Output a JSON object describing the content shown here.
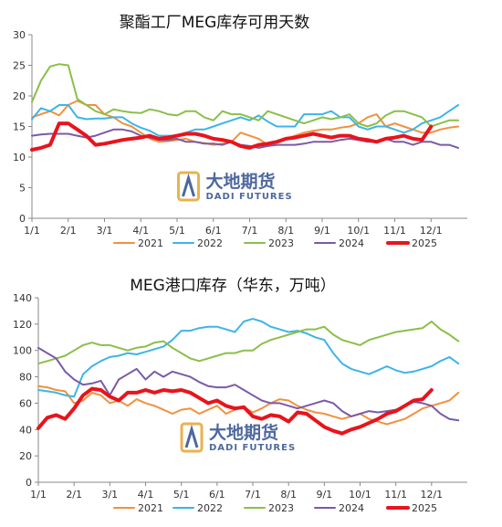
{
  "watermark": {
    "name_cn": "大地期货",
    "name_en": "DADI FUTURES"
  },
  "chart_data": [
    {
      "type": "line",
      "title": "聚酯工厂MEG库存可用天数",
      "xlabel": "",
      "ylabel": "",
      "ylim": [
        0,
        30
      ],
      "yticks": [
        0,
        5,
        10,
        15,
        20,
        25,
        30
      ],
      "xlim": [
        0,
        12
      ],
      "xtick_labels": [
        "1/1",
        "2/1",
        "3/1",
        "4/1",
        "5/1",
        "6/1",
        "7/1",
        "8/1",
        "9/1",
        "10/1",
        "11/1",
        "12/1"
      ],
      "grid": false,
      "legend": "bottom",
      "series": [
        {
          "name": "2021",
          "color": "#f0913e",
          "width": 2,
          "x": [
            0.0,
            0.25,
            0.5,
            0.75,
            1.0,
            1.25,
            1.5,
            1.75,
            2.0,
            2.25,
            2.5,
            2.75,
            3.0,
            3.25,
            3.5,
            3.75,
            4.0,
            4.25,
            4.5,
            4.75,
            5.0,
            5.25,
            5.5,
            5.75,
            6.0,
            6.25,
            6.5,
            6.75,
            7.0,
            7.25,
            7.5,
            7.75,
            8.0,
            8.25,
            8.5,
            8.75,
            9.0,
            9.25,
            9.5,
            9.75,
            10.0,
            10.25,
            10.5,
            10.75,
            11.0,
            11.25,
            11.5,
            11.75
          ],
          "y": [
            16.5,
            17,
            17.5,
            16.8,
            18.5,
            19.2,
            18.5,
            18.5,
            17,
            16.5,
            15.5,
            15,
            14,
            13,
            12.5,
            12.6,
            12.8,
            13,
            12.5,
            12.3,
            12,
            12.2,
            12.5,
            14,
            13.5,
            13,
            12,
            12.5,
            13,
            13.5,
            14,
            14.3,
            14.5,
            14.5,
            14.8,
            15,
            15.5,
            16.5,
            17,
            15,
            15.5,
            15,
            14.5,
            14,
            14,
            14.5,
            14.8,
            15
          ]
        },
        {
          "name": "2022",
          "color": "#3db5e6",
          "width": 2,
          "x": [
            0.0,
            0.25,
            0.5,
            0.75,
            1.0,
            1.25,
            1.5,
            1.75,
            2.0,
            2.25,
            2.5,
            2.75,
            3.0,
            3.25,
            3.5,
            3.75,
            4.0,
            4.25,
            4.5,
            4.75,
            5.0,
            5.25,
            5.5,
            5.75,
            6.0,
            6.25,
            6.5,
            6.75,
            7.0,
            7.25,
            7.5,
            7.75,
            8.0,
            8.25,
            8.5,
            8.75,
            9.0,
            9.25,
            9.5,
            9.75,
            10.0,
            10.25,
            10.5,
            10.75,
            11.0,
            11.25,
            11.5,
            11.75
          ],
          "y": [
            16.2,
            18,
            17.5,
            18.5,
            18.5,
            16.5,
            16.2,
            16.3,
            16.3,
            16.5,
            16.5,
            15.5,
            14.8,
            14.3,
            13.5,
            13.5,
            13.5,
            14,
            14.5,
            14.5,
            15,
            15.5,
            16,
            16.5,
            16,
            16.8,
            15.8,
            15,
            15,
            15,
            17,
            17,
            17,
            17.5,
            16.5,
            16.5,
            15,
            14.5,
            15,
            15,
            14.5,
            14,
            14.5,
            15.5,
            16,
            16.5,
            17.5,
            18.5
          ]
        },
        {
          "name": "2023",
          "color": "#8bbf49",
          "width": 2,
          "x": [
            0.0,
            0.25,
            0.5,
            0.75,
            1.0,
            1.25,
            1.5,
            1.75,
            2.0,
            2.25,
            2.5,
            2.75,
            3.0,
            3.25,
            3.5,
            3.75,
            4.0,
            4.25,
            4.5,
            4.75,
            5.0,
            5.25,
            5.5,
            5.75,
            6.0,
            6.25,
            6.5,
            6.75,
            7.0,
            7.25,
            7.5,
            7.75,
            8.0,
            8.25,
            8.5,
            8.75,
            9.0,
            9.25,
            9.5,
            9.75,
            10.0,
            10.25,
            10.5,
            10.75,
            11.0,
            11.25,
            11.5,
            11.75
          ],
          "y": [
            19,
            22.5,
            24.8,
            25.2,
            25,
            19.5,
            18.5,
            17.5,
            17,
            17.8,
            17.5,
            17.3,
            17.2,
            17.8,
            17.5,
            17,
            16.8,
            17.5,
            17.5,
            16.5,
            16,
            17.5,
            17,
            17,
            16.5,
            16,
            17.5,
            17,
            16.5,
            16,
            15.5,
            16,
            16.5,
            16.2,
            16.5,
            17,
            15.5,
            15,
            15.5,
            16.8,
            17.5,
            17.5,
            17,
            16.5,
            15,
            15.5,
            16,
            16
          ]
        },
        {
          "name": "2024",
          "color": "#7b5aa6",
          "width": 2,
          "x": [
            0.0,
            0.25,
            0.5,
            0.75,
            1.0,
            1.25,
            1.5,
            1.75,
            2.0,
            2.25,
            2.5,
            2.75,
            3.0,
            3.25,
            3.5,
            3.75,
            4.0,
            4.25,
            4.5,
            4.75,
            5.0,
            5.25,
            5.5,
            5.75,
            6.0,
            6.25,
            6.5,
            6.75,
            7.0,
            7.25,
            7.5,
            7.75,
            8.0,
            8.25,
            8.5,
            8.75,
            9.0,
            9.25,
            9.5,
            9.75,
            10.0,
            10.25,
            10.5,
            10.75,
            11.0,
            11.25,
            11.5,
            11.75
          ],
          "y": [
            13.5,
            13.7,
            13.8,
            13.8,
            13.8,
            13.5,
            13.2,
            13.5,
            14,
            14.5,
            14.5,
            14.2,
            13.5,
            13.2,
            12.8,
            12.8,
            13,
            12.5,
            12.5,
            12.2,
            12.2,
            12,
            12.5,
            12,
            11.8,
            11.5,
            11.8,
            12,
            12,
            12,
            12.2,
            12.5,
            12.5,
            12.5,
            12.8,
            13,
            12.8,
            12.5,
            12.5,
            13,
            12.5,
            12.5,
            12,
            12.5,
            12.5,
            12,
            12,
            11.5
          ]
        },
        {
          "name": "2025",
          "color": "#e8141c",
          "width": 4,
          "x": [
            0.0,
            0.25,
            0.5,
            0.75,
            1.0,
            1.25,
            1.5,
            1.75,
            2.0,
            2.25,
            2.5,
            2.75,
            3.0,
            3.25,
            3.5,
            3.75,
            4.0,
            4.25,
            4.5,
            4.75,
            5.0,
            5.25,
            5.5,
            5.75,
            6.0,
            6.25,
            6.5,
            6.75,
            7.0,
            7.25,
            7.5,
            7.75,
            8.0,
            8.25,
            8.5,
            8.75,
            9.0,
            9.25,
            9.5,
            9.75,
            10.0,
            10.25,
            10.5,
            10.75,
            11.0
          ],
          "y": [
            11.2,
            11.5,
            12,
            15.5,
            15.5,
            14.5,
            13.5,
            12,
            12.2,
            12.5,
            12.8,
            13,
            13.2,
            13.5,
            13,
            13.2,
            13.5,
            13.8,
            13.8,
            13.5,
            13,
            12.8,
            12.5,
            11.8,
            11.5,
            12,
            12.2,
            12.5,
            13,
            13.2,
            13.5,
            13.8,
            13.5,
            13.2,
            13.5,
            13.5,
            13,
            12.8,
            12.5,
            13,
            13.2,
            13.5,
            13,
            12.8,
            15
          ]
        }
      ]
    },
    {
      "type": "line",
      "title": "MEG港口库存（华东，万吨）",
      "xlabel": "",
      "ylabel": "",
      "ylim": [
        0,
        140
      ],
      "yticks": [
        0,
        20,
        40,
        60,
        80,
        100,
        120,
        140
      ],
      "xlim": [
        0,
        12
      ],
      "xtick_labels": [
        "1/1",
        "2/1",
        "3/1",
        "4/1",
        "5/1",
        "6/1",
        "7/1",
        "8/1",
        "9/1",
        "10/1",
        "11/1",
        "12/1"
      ],
      "grid": false,
      "legend": "bottom",
      "series": [
        {
          "name": "2021",
          "color": "#f0913e",
          "width": 2,
          "x": [
            0.0,
            0.25,
            0.5,
            0.75,
            1.0,
            1.25,
            1.5,
            1.75,
            2.0,
            2.25,
            2.5,
            2.75,
            3.0,
            3.25,
            3.5,
            3.75,
            4.0,
            4.25,
            4.5,
            4.75,
            5.0,
            5.25,
            5.5,
            5.75,
            6.0,
            6.25,
            6.5,
            6.75,
            7.0,
            7.25,
            7.5,
            7.75,
            8.0,
            8.25,
            8.5,
            8.75,
            9.0,
            9.25,
            9.5,
            9.75,
            10.0,
            10.25,
            10.5,
            10.75,
            11.0,
            11.25,
            11.5,
            11.75
          ],
          "y": [
            73,
            72,
            70,
            69,
            60,
            62,
            68,
            66,
            60,
            62,
            58,
            63,
            60,
            58,
            55,
            52,
            55,
            56,
            52,
            55,
            58,
            52,
            55,
            57,
            53,
            56,
            60,
            63,
            62,
            58,
            55,
            53,
            52,
            50,
            48,
            50,
            52,
            48,
            46,
            44,
            46,
            48,
            52,
            56,
            58,
            60,
            62,
            68
          ]
        },
        {
          "name": "2022",
          "color": "#3db5e6",
          "width": 2,
          "x": [
            0.0,
            0.25,
            0.5,
            0.75,
            1.0,
            1.25,
            1.5,
            1.75,
            2.0,
            2.25,
            2.5,
            2.75,
            3.0,
            3.25,
            3.5,
            3.75,
            4.0,
            4.25,
            4.5,
            4.75,
            5.0,
            5.25,
            5.5,
            5.75,
            6.0,
            6.25,
            6.5,
            6.75,
            7.0,
            7.25,
            7.5,
            7.75,
            8.0,
            8.25,
            8.5,
            8.75,
            9.0,
            9.25,
            9.5,
            9.75,
            10.0,
            10.25,
            10.5,
            10.75,
            11.0,
            11.25,
            11.5,
            11.75
          ],
          "y": [
            70,
            69,
            68,
            66,
            65,
            82,
            88,
            92,
            95,
            96,
            98,
            97,
            99,
            101,
            103,
            108,
            115,
            115,
            117,
            118,
            118,
            116,
            114,
            122,
            124,
            122,
            118,
            116,
            114,
            115,
            113,
            110,
            108,
            98,
            90,
            86,
            84,
            82,
            85,
            88,
            85,
            83,
            84,
            86,
            88,
            92,
            95,
            90
          ]
        },
        {
          "name": "2023",
          "color": "#8bbf49",
          "width": 2,
          "x": [
            0.0,
            0.25,
            0.5,
            0.75,
            1.0,
            1.25,
            1.5,
            1.75,
            2.0,
            2.25,
            2.5,
            2.75,
            3.0,
            3.25,
            3.5,
            3.75,
            4.0,
            4.25,
            4.5,
            4.75,
            5.0,
            5.25,
            5.5,
            5.75,
            6.0,
            6.25,
            6.5,
            6.75,
            7.0,
            7.25,
            7.5,
            7.75,
            8.0,
            8.25,
            8.5,
            8.75,
            9.0,
            9.25,
            9.5,
            9.75,
            10.0,
            10.25,
            10.5,
            10.75,
            11.0,
            11.25,
            11.5,
            11.75
          ],
          "y": [
            90,
            92,
            94,
            96,
            100,
            104,
            106,
            104,
            104,
            102,
            100,
            102,
            103,
            106,
            107,
            102,
            98,
            94,
            92,
            94,
            96,
            98,
            98,
            100,
            100,
            105,
            108,
            110,
            112,
            114,
            116,
            116,
            118,
            112,
            108,
            106,
            104,
            108,
            110,
            112,
            114,
            115,
            116,
            117,
            122,
            116,
            112,
            107
          ]
        },
        {
          "name": "2024",
          "color": "#7b5aa6",
          "width": 2,
          "x": [
            0.0,
            0.25,
            0.5,
            0.75,
            1.0,
            1.25,
            1.5,
            1.75,
            2.0,
            2.25,
            2.5,
            2.75,
            3.0,
            3.25,
            3.5,
            3.75,
            4.0,
            4.25,
            4.5,
            4.75,
            5.0,
            5.25,
            5.5,
            5.75,
            6.0,
            6.25,
            6.5,
            6.75,
            7.0,
            7.25,
            7.5,
            7.75,
            8.0,
            8.25,
            8.5,
            8.75,
            9.0,
            9.25,
            9.5,
            9.75,
            10.0,
            10.25,
            10.5,
            10.75,
            11.0,
            11.25,
            11.5,
            11.75
          ],
          "y": [
            102,
            98,
            94,
            84,
            78,
            74,
            75,
            77,
            66,
            78,
            82,
            86,
            78,
            84,
            80,
            84,
            82,
            80,
            76,
            73,
            72,
            72,
            74,
            70,
            66,
            62,
            60,
            60,
            58,
            56,
            58,
            60,
            62,
            60,
            54,
            50,
            52,
            54,
            53,
            54,
            55,
            58,
            61,
            60,
            58,
            52,
            48,
            47
          ]
        },
        {
          "name": "2025",
          "color": "#e8141c",
          "width": 4,
          "x": [
            0.0,
            0.25,
            0.5,
            0.75,
            1.0,
            1.25,
            1.5,
            1.75,
            2.0,
            2.25,
            2.5,
            2.75,
            3.0,
            3.25,
            3.5,
            3.75,
            4.0,
            4.25,
            4.5,
            4.75,
            5.0,
            5.25,
            5.5,
            5.75,
            6.0,
            6.25,
            6.5,
            6.75,
            7.0,
            7.25,
            7.5,
            7.75,
            8.0,
            8.25,
            8.5,
            8.75,
            9.0,
            9.25,
            9.5,
            9.75,
            10.0,
            10.25,
            10.5,
            10.75,
            11.0
          ],
          "y": [
            41,
            49,
            51,
            48,
            56,
            66,
            71,
            70,
            65,
            62,
            68,
            68,
            70,
            68,
            70,
            69,
            70,
            68,
            64,
            60,
            62,
            58,
            56,
            57,
            50,
            48,
            51,
            50,
            46,
            53,
            52,
            47,
            42,
            39,
            37,
            40,
            42,
            45,
            48,
            52,
            54,
            58,
            62,
            63,
            70
          ]
        }
      ]
    }
  ]
}
